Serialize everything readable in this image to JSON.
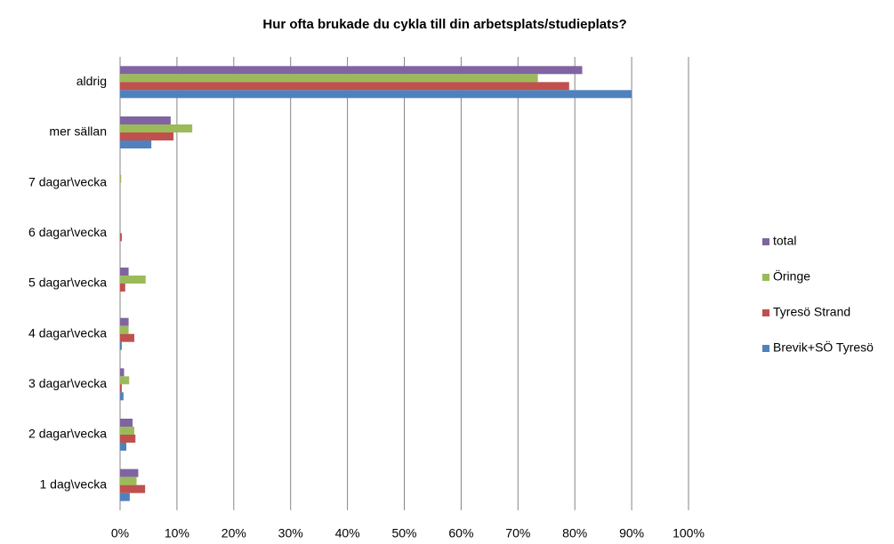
{
  "chart_data": {
    "type": "hbar",
    "title": "Hur ofta brukade du cykla till din arbetsplats/studieplats?",
    "categories": [
      "aldrig",
      "mer sällan",
      "7 dagar\\vecka",
      "6 dagar\\vecka",
      "5 dagar\\vecka",
      "4 dagar\\vecka",
      "3 dagar\\vecka",
      "2 dagar\\vecka",
      "1 dag\\vecka"
    ],
    "series": [
      {
        "name": "total",
        "color": "#8064a2",
        "values": [
          81.3,
          8.9,
          0,
          0,
          1.5,
          1.5,
          0.7,
          2.2,
          3.2
        ]
      },
      {
        "name": "Öringe",
        "color": "#9bbb59",
        "values": [
          73.5,
          12.7,
          0.2,
          0,
          4.5,
          1.5,
          1.6,
          2.5,
          2.9
        ]
      },
      {
        "name": "Tyresö Strand",
        "color": "#c0504d",
        "values": [
          79,
          9.4,
          0,
          0.3,
          0.9,
          2.5,
          0.3,
          2.7,
          4.4
        ]
      },
      {
        "name": "Brevik+SÖ Tyresö",
        "color": "#4f81bd",
        "values": [
          90,
          5.5,
          0,
          0,
          0,
          0.3,
          0.6,
          1.1,
          1.7
        ]
      }
    ],
    "xlim": [
      0,
      100
    ],
    "xticks": [
      {
        "value": 0,
        "label": "0%"
      },
      {
        "value": 10,
        "label": "10%"
      },
      {
        "value": 20,
        "label": "20%"
      },
      {
        "value": 30,
        "label": "30%"
      },
      {
        "value": 40,
        "label": "40%"
      },
      {
        "value": 50,
        "label": "50%"
      },
      {
        "value": 60,
        "label": "60%"
      },
      {
        "value": 70,
        "label": "70%"
      },
      {
        "value": 80,
        "label": "80%"
      },
      {
        "value": 90,
        "label": "90%"
      },
      {
        "value": 100,
        "label": "100%"
      }
    ],
    "grid": true,
    "legend": "right"
  }
}
